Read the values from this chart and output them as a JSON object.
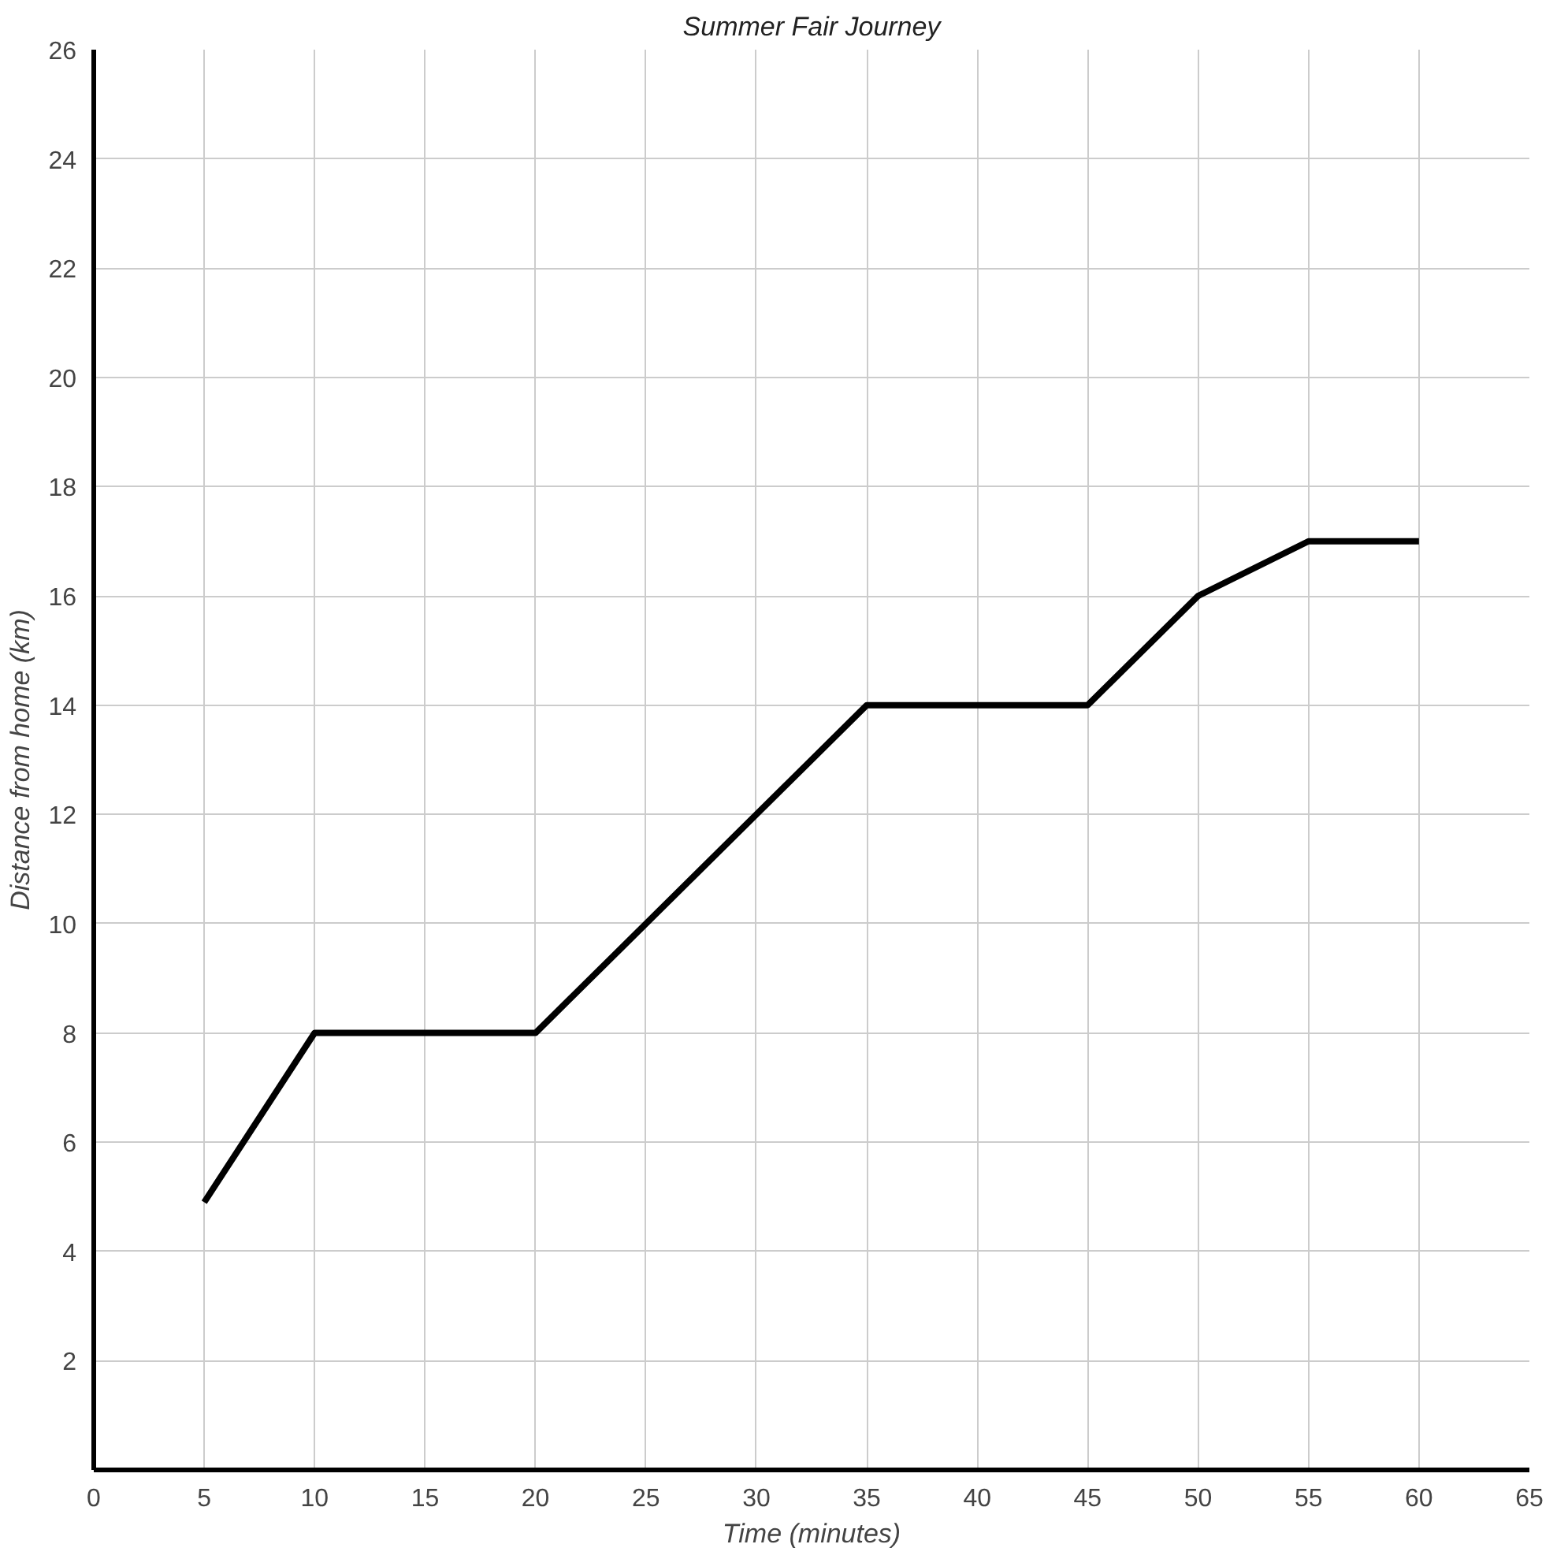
{
  "chart_data": {
    "type": "line",
    "title": "Summer Fair Journey",
    "xlabel": "Time (minutes)",
    "ylabel": "Distance from home (km)",
    "x": [
      5,
      10,
      20,
      35,
      45,
      50,
      55,
      60
    ],
    "series": [
      {
        "color": "#000000",
        "values": [
          4.9,
          8,
          8,
          14,
          14,
          16,
          17,
          17
        ]
      }
    ],
    "xlim": [
      0,
      65
    ],
    "ylim": [
      0,
      26
    ],
    "xticks": [
      0,
      5,
      10,
      15,
      20,
      25,
      30,
      35,
      40,
      45,
      50,
      55,
      60,
      65
    ],
    "yticks": [
      2,
      4,
      6,
      8,
      10,
      12,
      14,
      16,
      18,
      20,
      22,
      24,
      26
    ],
    "grid": true,
    "marker": "none",
    "line_style": "solid"
  }
}
